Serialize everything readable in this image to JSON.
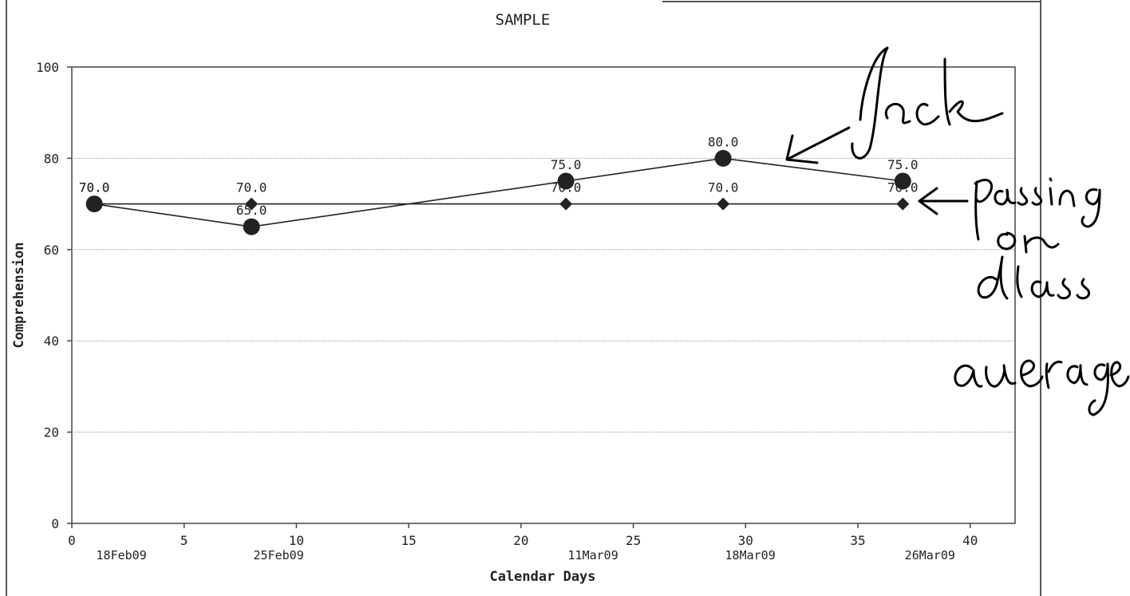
{
  "chart_data": {
    "type": "line",
    "title": "SAMPLE",
    "xlabel": "Calendar Days",
    "ylabel": "Comprehension",
    "xlim": [
      0,
      42
    ],
    "ylim": [
      0,
      100
    ],
    "x_ticks": [
      0,
      5,
      10,
      15,
      20,
      25,
      30,
      35,
      40
    ],
    "y_ticks": [
      0,
      20,
      40,
      60,
      80,
      100
    ],
    "grid": "horizontal",
    "date_labels": [
      {
        "x": 1,
        "label": "18Feb09"
      },
      {
        "x": 8,
        "label": "25Feb09"
      },
      {
        "x": 22,
        "label": "11Mar09"
      },
      {
        "x": 29,
        "label": "18Mar09"
      },
      {
        "x": 37,
        "label": "26Mar09"
      }
    ],
    "series": [
      {
        "marker": "circle",
        "color": "#222222",
        "points": [
          {
            "x": 1,
            "y": 70.0,
            "label": "70.0"
          },
          {
            "x": 8,
            "y": 65.0,
            "label": "65.0"
          },
          {
            "x": 22,
            "y": 75.0,
            "label": "75.0"
          },
          {
            "x": 29,
            "y": 80.0,
            "label": "80.0"
          },
          {
            "x": 37,
            "y": 75.0,
            "label": "75.0"
          }
        ]
      },
      {
        "marker": "diamond",
        "color": "#222222",
        "points": [
          {
            "x": 1,
            "y": 70.0,
            "label": "70.0"
          },
          {
            "x": 8,
            "y": 70.0,
            "label": "70.0"
          },
          {
            "x": 22,
            "y": 70.0,
            "label": "70.0"
          },
          {
            "x": 29,
            "y": 70.0,
            "label": "70.0"
          },
          {
            "x": 37,
            "y": 70.0,
            "label": "70.0"
          }
        ]
      }
    ],
    "annotations": [
      "Jack",
      "passing",
      "or",
      "class",
      "average"
    ]
  }
}
